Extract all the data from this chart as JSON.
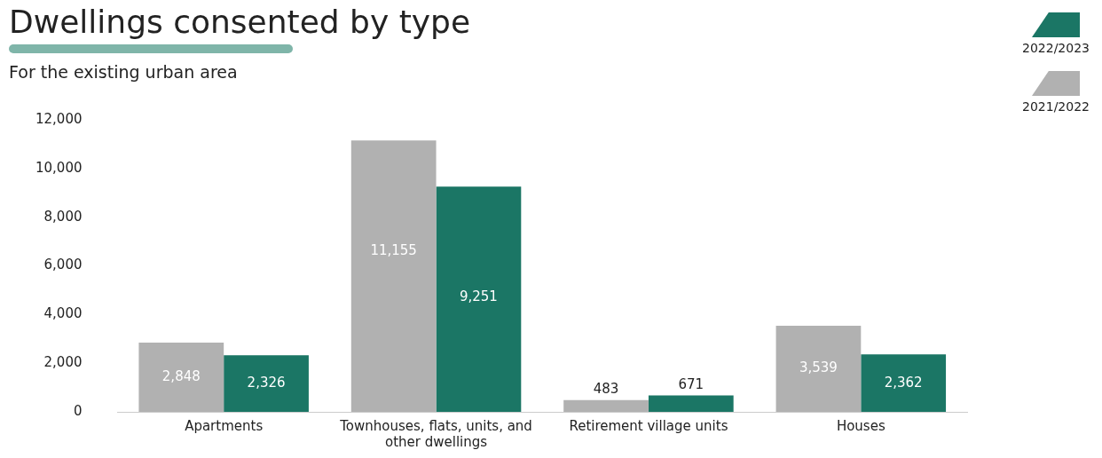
{
  "chart_data": {
    "type": "bar",
    "title": "Dwellings consented by type",
    "subtitle": "For the existing urban area",
    "categories": [
      "Apartments",
      "Townhouses, flats, units, and other dwellings",
      "Retirement village units",
      "Houses"
    ],
    "series": [
      {
        "name": "2021/2022",
        "color": "#b1b1b1",
        "values": [
          2848,
          11155,
          483,
          3539
        ],
        "value_labels": [
          "2,848",
          "11,155",
          "483",
          "3,539"
        ]
      },
      {
        "name": "2022/2023",
        "color": "#1b7665",
        "values": [
          2326,
          9251,
          671,
          2362
        ],
        "value_labels": [
          "2,326",
          "9,251",
          "671",
          "2,362"
        ]
      }
    ],
    "ylim": [
      0,
      12000
    ],
    "yticks": [
      {
        "value": 0,
        "label": "0"
      },
      {
        "value": 2000,
        "label": "2,000"
      },
      {
        "value": 4000,
        "label": "4,000"
      },
      {
        "value": 6000,
        "label": "6,000"
      },
      {
        "value": 8000,
        "label": "8,000"
      },
      {
        "value": 10000,
        "label": "10,000"
      },
      {
        "value": 12000,
        "label": "12,000"
      }
    ],
    "grid": false,
    "legend": "top right"
  }
}
